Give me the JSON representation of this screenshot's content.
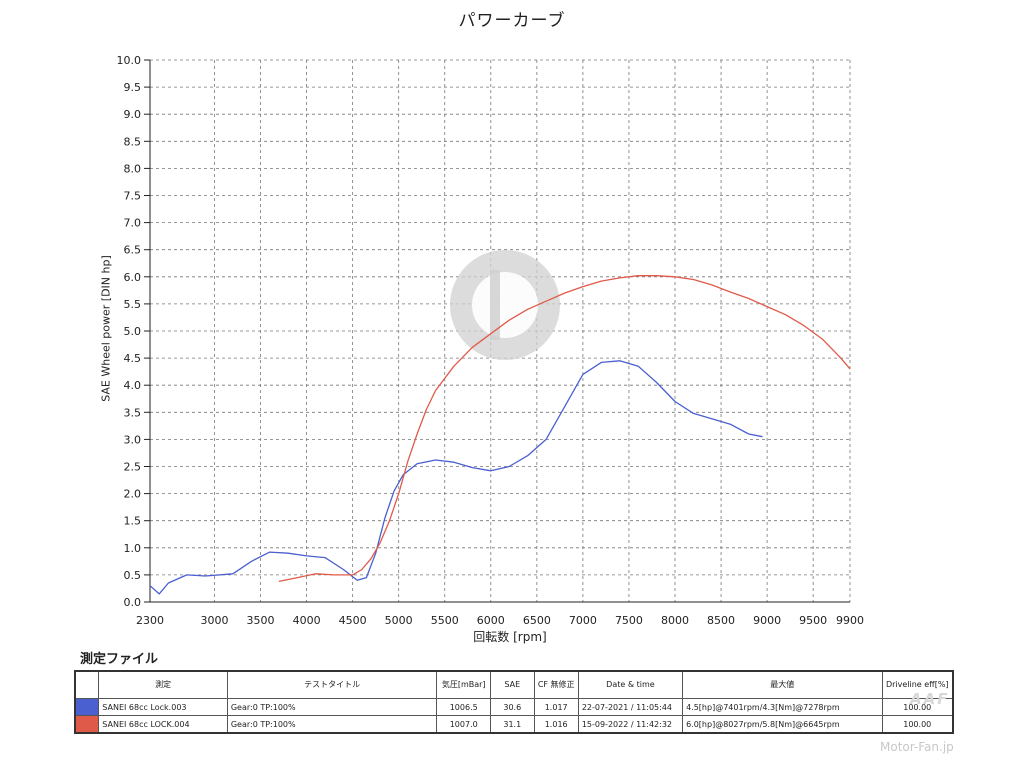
{
  "chart_data": {
    "type": "line",
    "title": "パワーカーブ",
    "xlabel": "回転数 [rpm]",
    "ylabel": "SAE Wheel power [DIN hp]",
    "xlim": [
      2300,
      9900
    ],
    "ylim": [
      0.0,
      10.0
    ],
    "x_ticks": [
      2300,
      3000,
      3500,
      4000,
      4500,
      5000,
      5500,
      6000,
      6500,
      7000,
      7500,
      8000,
      8500,
      9000,
      9500,
      9900
    ],
    "y_ticks": [
      "0.0",
      "0.5",
      "1.0",
      "1.5",
      "2.0",
      "2.5",
      "3.0",
      "3.5",
      "4.0",
      "4.5",
      "5.0",
      "5.5",
      "6.0",
      "6.5",
      "7.0",
      "7.5",
      "8.0",
      "8.5",
      "9.0",
      "9.5",
      "10.0"
    ],
    "grid": true,
    "series": [
      {
        "name": "SANEI 68cc Lock.003",
        "color": "#4a5fd0",
        "x": [
          2300,
          2400,
          2500,
          2700,
          2900,
          3200,
          3400,
          3600,
          3800,
          4000,
          4200,
          4400,
          4550,
          4650,
          4750,
          4850,
          4950,
          5050,
          5200,
          5400,
          5600,
          5800,
          6000,
          6200,
          6400,
          6600,
          6800,
          7000,
          7200,
          7400,
          7600,
          7800,
          8000,
          8200,
          8400,
          8600,
          8800,
          8950
        ],
        "y": [
          0.3,
          0.15,
          0.35,
          0.5,
          0.48,
          0.52,
          0.75,
          0.92,
          0.9,
          0.85,
          0.82,
          0.6,
          0.4,
          0.45,
          0.9,
          1.55,
          2.05,
          2.35,
          2.55,
          2.62,
          2.58,
          2.48,
          2.42,
          2.5,
          2.7,
          3.0,
          3.6,
          4.2,
          4.42,
          4.45,
          4.35,
          4.05,
          3.7,
          3.48,
          3.38,
          3.28,
          3.1,
          3.05
        ]
      },
      {
        "name": "SANEI 68cc LOCK.004",
        "color": "#e05a4a",
        "x": [
          3700,
          3900,
          4100,
          4300,
          4500,
          4600,
          4700,
          4800,
          4900,
          5000,
          5100,
          5200,
          5300,
          5400,
          5600,
          5800,
          6000,
          6200,
          6400,
          6600,
          6800,
          7000,
          7200,
          7400,
          7600,
          7800,
          8000,
          8200,
          8400,
          8600,
          8800,
          9000,
          9200,
          9400,
          9600,
          9800,
          9900
        ],
        "y": [
          0.38,
          0.45,
          0.52,
          0.5,
          0.5,
          0.6,
          0.8,
          1.1,
          1.5,
          2.0,
          2.6,
          3.1,
          3.55,
          3.9,
          4.35,
          4.7,
          4.95,
          5.2,
          5.4,
          5.55,
          5.7,
          5.82,
          5.92,
          5.98,
          6.02,
          6.02,
          6.0,
          5.95,
          5.85,
          5.72,
          5.6,
          5.45,
          5.3,
          5.1,
          4.85,
          4.5,
          4.3
        ]
      }
    ]
  },
  "section_title": "測定ファイル",
  "table": {
    "headers": {
      "measure": "測定",
      "test_title": "テストタイトル",
      "pressure": "気圧[mBar]",
      "sae": "SAE",
      "cf": "CF 無修正",
      "date": "Date & time",
      "max": "最大値",
      "driveline": "Driveline eff[%]"
    },
    "rows": [
      {
        "color": "#4a5fd0",
        "name": "SANEI 68cc Lock.003",
        "title": "Gear:0 TP:100%",
        "pressure": "1006.5",
        "sae": "30.6",
        "cf": "1.017",
        "date": "22-07-2021 / 11:05:44",
        "max": "4.5[hp]@7401rpm/4.3[Nm]@7278rpm",
        "driveline": "100.00"
      },
      {
        "color": "#e05a4a",
        "name": "SANEI 68cc LOCK.004",
        "title": "Gear:0 TP:100%",
        "pressure": "1007.0",
        "sae": "31.1",
        "cf": "1.016",
        "date": "15-09-2022 / 11:42:32",
        "max": "6.0[hp]@8027rpm/5.8[Nm]@6645rpm",
        "driveline": "100.00"
      }
    ]
  },
  "watermark": "Motor-Fan.jp"
}
